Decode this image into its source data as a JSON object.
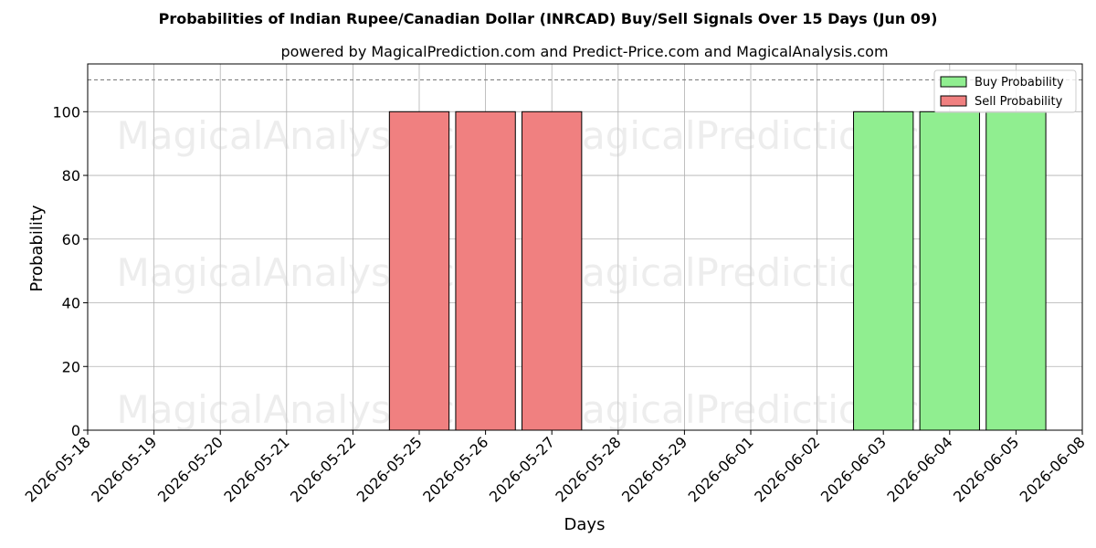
{
  "chart_data": {
    "type": "bar",
    "title": "Probabilities of Indian Rupee/Canadian Dollar (INRCAD) Buy/Sell Signals Over 15 Days (Jun 09)",
    "subtitle": "powered by MagicalPrediction.com and Predict-Price.com and MagicalAnalysis.com",
    "xlabel": "Days",
    "ylabel": "Probability",
    "ylim": [
      0,
      115
    ],
    "yticks": [
      0,
      20,
      40,
      60,
      80,
      100
    ],
    "reference_line": 110,
    "categories": [
      "2026-05-18",
      "2026-05-19",
      "2026-05-20",
      "2026-05-21",
      "2026-05-22",
      "2026-05-25",
      "2026-05-26",
      "2026-05-27",
      "2026-05-28",
      "2026-05-29",
      "2026-06-01",
      "2026-06-02",
      "2026-06-03",
      "2026-06-04",
      "2026-06-05",
      "2026-06-08"
    ],
    "series": [
      {
        "name": "Buy Probability",
        "color": "#90ee90",
        "values": [
          0,
          0,
          0,
          0,
          0,
          0,
          0,
          0,
          0,
          0,
          0,
          0,
          100,
          100,
          100,
          0
        ]
      },
      {
        "name": "Sell Probability",
        "color": "#f08080",
        "values": [
          0,
          0,
          0,
          0,
          0,
          100,
          100,
          100,
          0,
          0,
          0,
          0,
          0,
          0,
          0,
          0
        ]
      }
    ],
    "grid": true,
    "legend_position": "top-right"
  },
  "watermarks": [
    "MagicalAnalysis.com",
    "MagicalPrediction.com"
  ]
}
